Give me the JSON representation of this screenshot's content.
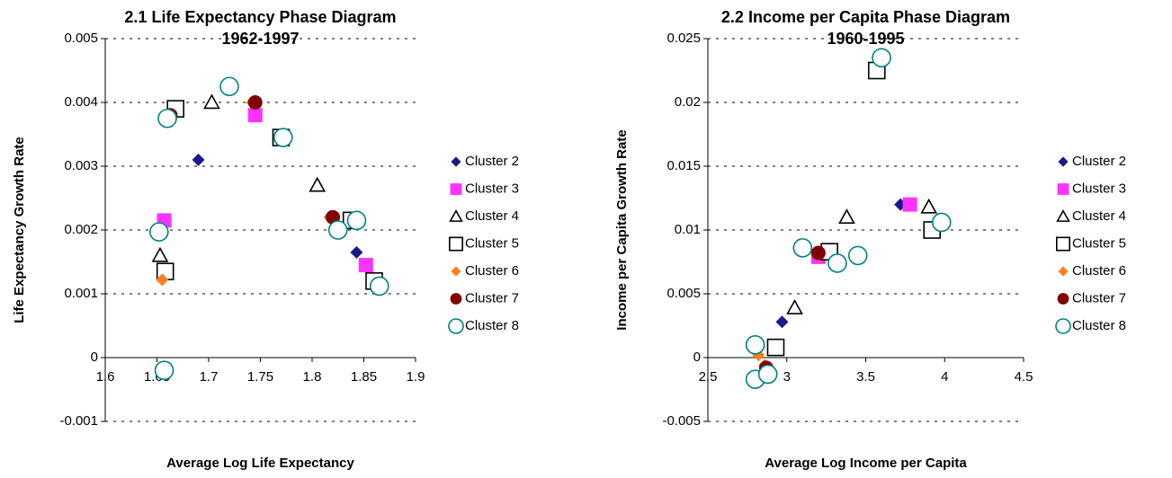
{
  "chart_data": [
    {
      "type": "scatter",
      "title": "2.1 Life Expectancy Phase Diagram",
      "subtitle": "1962-1997",
      "x_label": "Average Log Life Expectancy",
      "y_label": "Life Expectancy Growth Rate",
      "xlim": [
        1.6,
        1.9
      ],
      "xticks": [
        1.6,
        1.65,
        1.7,
        1.75,
        1.8,
        1.85,
        1.9
      ],
      "ylim": [
        -0.001,
        0.005
      ],
      "yticks": [
        -0.001,
        0,
        0.001,
        0.002,
        0.003,
        0.004,
        0.005
      ],
      "grid": true,
      "legend": "right",
      "series": [
        {
          "name": "Cluster 2",
          "color": "#1a1a8c",
          "marker": "diamond",
          "x": [
            1.69,
            1.843
          ],
          "values": [
            0.0031,
            0.00165
          ]
        },
        {
          "name": "Cluster 3",
          "color": "#ff33ff",
          "marker": "square",
          "x": [
            1.657,
            1.745,
            1.852
          ],
          "values": [
            0.00215,
            0.0038,
            0.00145
          ]
        },
        {
          "name": "Cluster 4",
          "color": "#000000",
          "marker": "triangle-open",
          "x": [
            1.653,
            1.703,
            1.805
          ],
          "values": [
            0.0016,
            0.004,
            0.0027
          ]
        },
        {
          "name": "Cluster 5",
          "color": "#000000",
          "marker": "square-open",
          "x": [
            1.658,
            1.668,
            1.77,
            1.838,
            1.86
          ],
          "values": [
            0.00135,
            0.0039,
            0.00345,
            0.00215,
            0.0012
          ]
        },
        {
          "name": "Cluster 6",
          "color": "#ff7f1f",
          "marker": "diamond",
          "x": [
            1.655,
            1.66,
            1.742,
            1.817,
            1.863
          ],
          "values": [
            0.00122,
            0.0037,
            0.004,
            0.0022,
            0.0011
          ]
        },
        {
          "name": "Cluster 7",
          "color": "#800000",
          "marker": "circle",
          "x": [
            1.652,
            1.657,
            1.663,
            1.745,
            1.82,
            1.842,
            1.865
          ],
          "values": [
            0.002,
            -0.0002,
            0.0038,
            0.004,
            0.0022,
            0.00218,
            0.0011
          ]
        },
        {
          "name": "Cluster 8",
          "color": "#008080",
          "marker": "circle-open",
          "x": [
            1.652,
            1.657,
            1.66,
            1.72,
            1.772,
            1.825,
            1.843,
            1.865
          ],
          "values": [
            0.00197,
            -0.0002,
            0.00375,
            0.00425,
            0.00345,
            0.002,
            0.00215,
            0.00112
          ]
        }
      ]
    },
    {
      "type": "scatter",
      "title": "2.2 Income per Capita Phase Diagram",
      "subtitle": "1960-1995",
      "x_label": "Average Log Income per Capita",
      "y_label": "Income per Capita Growth Rate",
      "xlim": [
        2.5,
        4.5
      ],
      "xticks": [
        2.5,
        3,
        3.5,
        4,
        4.5
      ],
      "ylim": [
        -0.005,
        0.025
      ],
      "yticks": [
        -0.005,
        0,
        0.005,
        0.01,
        0.015,
        0.02,
        0.025
      ],
      "grid": true,
      "legend": "right",
      "series": [
        {
          "name": "Cluster 2",
          "color": "#1a1a8c",
          "marker": "diamond",
          "x": [
            2.97,
            3.72
          ],
          "values": [
            0.0028,
            0.012
          ]
        },
        {
          "name": "Cluster 3",
          "color": "#ff33ff",
          "marker": "square",
          "x": [
            3.2,
            3.78
          ],
          "values": [
            0.0079,
            0.012
          ]
        },
        {
          "name": "Cluster 4",
          "color": "#000000",
          "marker": "triangle-open",
          "x": [
            3.05,
            3.38,
            3.9
          ],
          "values": [
            0.0039,
            0.011,
            0.0118
          ]
        },
        {
          "name": "Cluster 5",
          "color": "#000000",
          "marker": "square-open",
          "x": [
            2.93,
            3.27,
            3.57,
            3.92
          ],
          "values": [
            0.0008,
            0.0083,
            0.0225,
            0.01
          ]
        },
        {
          "name": "Cluster 6",
          "color": "#ff7f1f",
          "marker": "diamond",
          "x": [
            2.82,
            2.86,
            3.2,
            3.43,
            3.98
          ],
          "values": [
            0.0002,
            -0.0006,
            0.008,
            0.0079,
            0.0105
          ]
        },
        {
          "name": "Cluster 7",
          "color": "#800000",
          "marker": "circle",
          "x": [
            2.8,
            2.82,
            2.87,
            3.2,
            3.44,
            3.6,
            3.97
          ],
          "values": [
            0.0008,
            -0.0017,
            -0.0008,
            0.0082,
            0.008,
            0.0234,
            0.0105
          ]
        },
        {
          "name": "Cluster 8",
          "color": "#008080",
          "marker": "circle-open",
          "x": [
            2.8,
            2.8,
            2.88,
            3.1,
            3.32,
            3.45,
            3.6,
            3.98
          ],
          "values": [
            0.001,
            -0.0017,
            -0.0013,
            0.0086,
            0.0074,
            0.008,
            0.0235,
            0.0106
          ]
        }
      ]
    }
  ]
}
